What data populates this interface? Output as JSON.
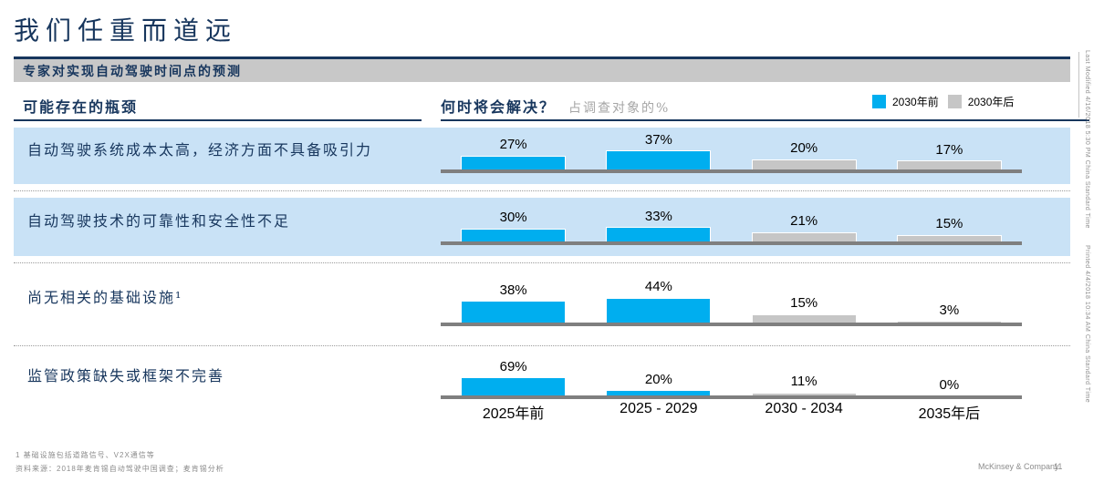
{
  "slide": {
    "title": "我们任重而道远",
    "exhibit_header": "专家对实现自动驾驶时间点的预测",
    "columns": {
      "left_header": "可能存在的瓶颈",
      "chart_header": "何时将会解决？",
      "chart_subheader": "占调查对象的%"
    },
    "legend": [
      {
        "label": "2030年前",
        "color": "#00AEEF"
      },
      {
        "label": "2030年后",
        "color": "#C6C6C6"
      }
    ],
    "footnote": "1 基础设施包括道路信号、V2X通信等",
    "source": "资料来源：2018年麦肯锡自动驾驶中国调查；麦肯锡分析",
    "footer": {
      "brand": "McKinsey & Company",
      "page_number": "11"
    },
    "side_text_top": "Last Modified 4/16/2018 5:30 PM China Standard Time",
    "side_text_bottom": "Printed 4/4/2018 10:34 AM China Standard Time"
  },
  "chart_data": {
    "type": "bar",
    "title": "专家对实现自动驾驶时间点的预测",
    "unit": "% of respondents",
    "categories": [
      "2025年前",
      "2025 - 2029",
      "2030 - 2034",
      "2035年后"
    ],
    "category_series_map": [
      "before_2030",
      "before_2030",
      "after_2030",
      "after_2030"
    ],
    "series_colors": {
      "before_2030": "#00AEEF",
      "after_2030": "#C6C6C6"
    },
    "rows": [
      {
        "label": "自动驾驶系统成本太高，经济方面不具备吸引力",
        "values": [
          27,
          37,
          20,
          17
        ],
        "highlighted": true
      },
      {
        "label": "自动驾驶技术的可靠性和安全性不足",
        "values": [
          30,
          33,
          21,
          15
        ],
        "highlighted": true
      },
      {
        "label": "尚无相关的基础设施¹",
        "values": [
          38,
          44,
          15,
          3
        ],
        "highlighted": false
      },
      {
        "label": "监管政策缺失或框架不完善",
        "values": [
          69,
          20,
          11,
          0
        ],
        "highlighted": false
      }
    ],
    "legend_position": "top-right",
    "grid": false
  }
}
